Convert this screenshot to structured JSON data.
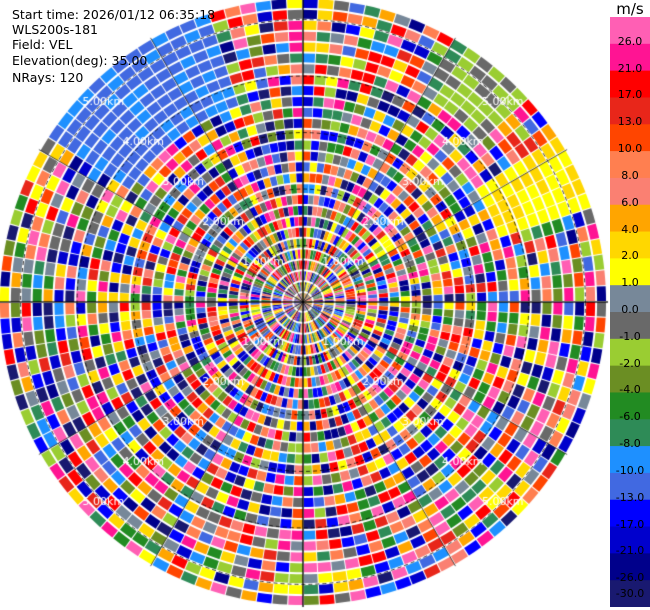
{
  "header": {
    "start_time": "Start time: 2026/01/12 06:35:18",
    "instrument": "WLS200s-181",
    "field": "Field: VEL",
    "elevation": "Elevation(deg): 35.00",
    "nrays": "NRays: 120"
  },
  "chart_data": {
    "type": "heatmap",
    "subtype": "polar-ppi",
    "field": "VEL",
    "elevation_deg": 35.0,
    "n_rays": 120,
    "range_rings": [
      {
        "label": "1.00km",
        "km": 1
      },
      {
        "label": "2.00km",
        "km": 2
      },
      {
        "label": "3.00km",
        "km": 3
      },
      {
        "label": "4.00km",
        "km": 4
      },
      {
        "label": "5.00km",
        "km": 5
      }
    ],
    "max_range_km": 5.4,
    "ring_label_bearings_deg": [
      45,
      135,
      225,
      315
    ],
    "colorbar": {
      "title": "m/s",
      "min": -30.0,
      "max": 30.0,
      "ticks": [
        26.0,
        21.0,
        17.0,
        13.0,
        10.0,
        8.0,
        6.0,
        4.0,
        2.0,
        1.0,
        0.0,
        -1.0,
        -2.0,
        -4.0,
        -6.0,
        -8.0,
        -10.0,
        -13.0,
        -17.0,
        -21.0,
        -26.0,
        -30.0
      ],
      "bins": [
        {
          "from": 26.0,
          "to": 30.0,
          "color": "#ff5fb4"
        },
        {
          "from": 21.0,
          "to": 26.0,
          "color": "#ff1493"
        },
        {
          "from": 17.0,
          "to": 21.0,
          "color": "#ff0000"
        },
        {
          "from": 13.0,
          "to": 17.0,
          "color": "#e8261a"
        },
        {
          "from": 10.0,
          "to": 13.0,
          "color": "#ff4500"
        },
        {
          "from": 8.0,
          "to": 10.0,
          "color": "#ff7f50"
        },
        {
          "from": 6.0,
          "to": 8.0,
          "color": "#fa8072"
        },
        {
          "from": 4.0,
          "to": 6.0,
          "color": "#ffa500"
        },
        {
          "from": 2.0,
          "to": 4.0,
          "color": "#ffd700"
        },
        {
          "from": 1.0,
          "to": 2.0,
          "color": "#ffff00"
        },
        {
          "from": 0.0,
          "to": 1.0,
          "color": "#778899"
        },
        {
          "from": -1.0,
          "to": 0.0,
          "color": "#696969"
        },
        {
          "from": -2.0,
          "to": -1.0,
          "color": "#9acd32"
        },
        {
          "from": -4.0,
          "to": -2.0,
          "color": "#6b8e23"
        },
        {
          "from": -6.0,
          "to": -4.0,
          "color": "#228b22"
        },
        {
          "from": -8.0,
          "to": -6.0,
          "color": "#2e8b57"
        },
        {
          "from": -10.0,
          "to": -8.0,
          "color": "#1e90ff"
        },
        {
          "from": -13.0,
          "to": -10.0,
          "color": "#4169e1"
        },
        {
          "from": -17.0,
          "to": -13.0,
          "color": "#0000ff"
        },
        {
          "from": -21.0,
          "to": -17.0,
          "color": "#0000cd"
        },
        {
          "from": -26.0,
          "to": -21.0,
          "color": "#00008b"
        },
        {
          "from": -30.0,
          "to": -26.0,
          "color": "#191970"
        }
      ]
    }
  }
}
